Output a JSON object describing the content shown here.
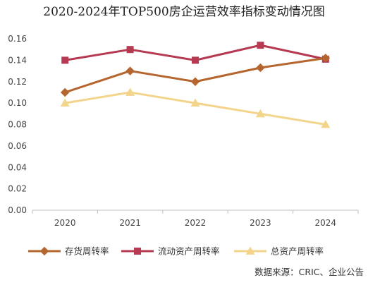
{
  "chart_data": {
    "type": "line",
    "title": "2020-2024年TOP500房企运营效率指标变动情况图",
    "categories": [
      "2020",
      "2021",
      "2022",
      "2023",
      "2024"
    ],
    "ylim": [
      0,
      0.16
    ],
    "yticks": [
      "0.00",
      "0.02",
      "0.04",
      "0.06",
      "0.08",
      "0.10",
      "0.12",
      "0.14",
      "0.16"
    ],
    "grid": false,
    "legend_position": "bottom",
    "series": [
      {
        "name": "存货周转率",
        "values": [
          0.11,
          0.13,
          0.12,
          0.133,
          0.142
        ],
        "color": "#b5652e",
        "marker": "diamond"
      },
      {
        "name": "流动资产周转率",
        "values": [
          0.14,
          0.15,
          0.14,
          0.154,
          0.141
        ],
        "color": "#b53a52",
        "marker": "square"
      },
      {
        "name": "总资产周转率",
        "values": [
          0.1,
          0.11,
          0.1,
          0.09,
          0.08
        ],
        "color": "#f2d48b",
        "marker": "triangle"
      }
    ]
  },
  "source_note": "数据来源：CRIC、企业公告"
}
